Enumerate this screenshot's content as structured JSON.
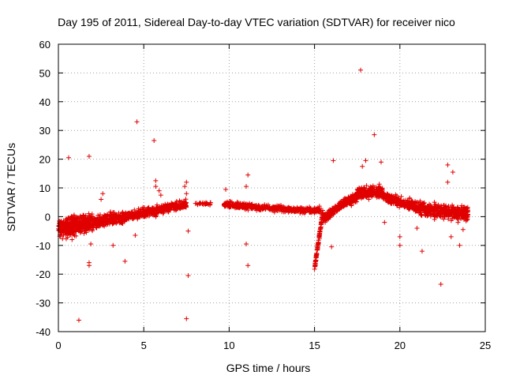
{
  "chart_data": {
    "type": "scatter",
    "title": "Day 195 of 2011, Sidereal Day-to-day VTEC variation (SDTVAR) for receiver nico",
    "xlabel": "GPS time / hours",
    "ylabel": "SDTVAR / TECUs",
    "xlim": [
      0,
      25
    ],
    "ylim": [
      -40,
      60
    ],
    "xticks": [
      "0",
      "5",
      "10",
      "15",
      "20",
      "25"
    ],
    "yticks": [
      "-40",
      "-30",
      "-20",
      "-10",
      "0",
      "10",
      "20",
      "30",
      "40",
      "50",
      "60"
    ],
    "grid": true,
    "marker": "+",
    "color": "#e00000",
    "series": [
      {
        "name": "SDTVAR",
        "note": "dense band approximated by trend segments [x0, y0, x1, y1, spread, count]",
        "band": [
          [
            0.0,
            -4.0,
            2.0,
            -2.0,
            4.5,
            420
          ],
          [
            2.0,
            -2.0,
            4.0,
            0.0,
            3.0,
            300
          ],
          [
            4.0,
            0.0,
            6.0,
            2.5,
            2.5,
            240
          ],
          [
            6.0,
            2.5,
            7.5,
            4.5,
            2.0,
            200
          ],
          [
            8.0,
            4.5,
            9.0,
            4.5,
            0.8,
            25
          ],
          [
            9.7,
            4.5,
            12.0,
            3.0,
            1.5,
            200
          ],
          [
            12.0,
            3.0,
            15.0,
            2.0,
            1.5,
            220
          ],
          [
            15.0,
            2.0,
            15.3,
            2.5,
            1.5,
            40
          ],
          [
            15.5,
            -1.0,
            16.5,
            4.0,
            2.0,
            120
          ],
          [
            16.5,
            4.0,
            17.5,
            7.0,
            2.5,
            160
          ],
          [
            17.5,
            8.0,
            19.0,
            9.0,
            3.0,
            220
          ],
          [
            19.0,
            7.0,
            20.5,
            4.0,
            2.5,
            200
          ],
          [
            20.5,
            4.0,
            22.0,
            2.0,
            3.0,
            200
          ],
          [
            22.0,
            2.0,
            24.0,
            1.0,
            3.5,
            280
          ]
        ],
        "dip": [
          15.0,
          -18.0,
          15.5,
          2.0,
          1.2,
          90
        ],
        "outliers": [
          [
            0.6,
            20.5
          ],
          [
            1.8,
            21.0
          ],
          [
            1.8,
            -16.0
          ],
          [
            1.8,
            -17.0
          ],
          [
            1.2,
            -36.0
          ],
          [
            4.6,
            33.0
          ],
          [
            5.6,
            26.5
          ],
          [
            3.9,
            -15.5
          ],
          [
            4.5,
            -6.5
          ],
          [
            3.2,
            -10.0
          ],
          [
            7.5,
            -35.5
          ],
          [
            7.6,
            -20.5
          ],
          [
            7.6,
            -5.0
          ],
          [
            7.5,
            12.0
          ],
          [
            7.4,
            10.5
          ],
          [
            7.5,
            8.0
          ],
          [
            5.7,
            12.5
          ],
          [
            5.7,
            10.5
          ],
          [
            9.8,
            9.5
          ],
          [
            11.1,
            14.5
          ],
          [
            11.0,
            10.5
          ],
          [
            11.1,
            -17.0
          ],
          [
            11.0,
            -9.5
          ],
          [
            16.1,
            19.5
          ],
          [
            16.0,
            -10.5
          ],
          [
            17.7,
            51.0
          ],
          [
            17.8,
            17.5
          ],
          [
            18.0,
            19.5
          ],
          [
            18.5,
            28.5
          ],
          [
            18.9,
            19.0
          ],
          [
            19.1,
            -2.0
          ],
          [
            20.0,
            -10.0
          ],
          [
            20.0,
            -7.0
          ],
          [
            21.3,
            -12.0
          ],
          [
            21.0,
            -4.0
          ],
          [
            22.4,
            -23.5
          ],
          [
            22.8,
            18.0
          ],
          [
            23.1,
            15.5
          ],
          [
            23.0,
            -7.0
          ],
          [
            23.5,
            -10.0
          ],
          [
            22.8,
            12.0
          ],
          [
            23.7,
            -4.5
          ],
          [
            2.5,
            6.0
          ],
          [
            2.6,
            8.0
          ],
          [
            0.8,
            -8.0
          ],
          [
            1.9,
            -9.5
          ],
          [
            6.0,
            7.5
          ],
          [
            5.9,
            9.0
          ]
        ]
      }
    ]
  }
}
